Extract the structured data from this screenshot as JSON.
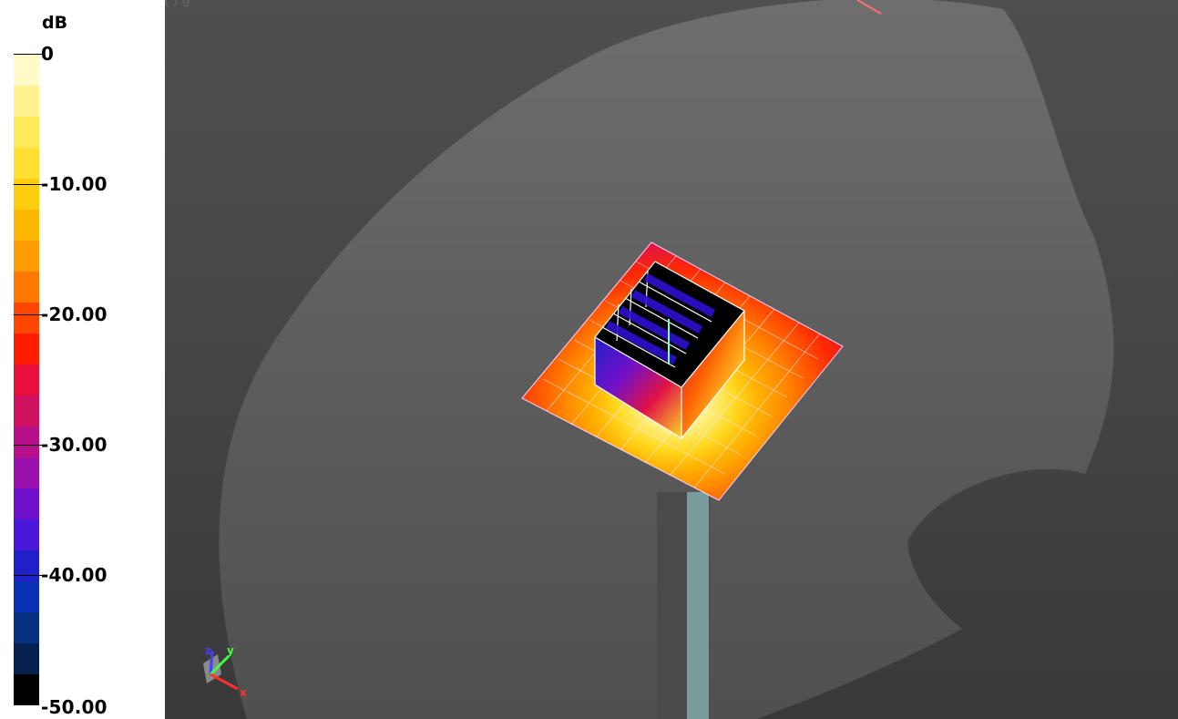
{
  "caption": "(          )                    g",
  "legend": {
    "unit": "dB",
    "labels": [
      "0",
      "-10.00",
      "-20.00",
      "-30.00",
      "-40.00",
      "-50.00"
    ],
    "colors": [
      "#fffac8",
      "#fff290",
      "#ffea5a",
      "#ffe030",
      "#ffce10",
      "#ffb800",
      "#ff9c00",
      "#ff7800",
      "#ff4600",
      "#ff1c00",
      "#e8103a",
      "#d01060",
      "#b8108a",
      "#9a10ac",
      "#7010c8",
      "#4a18d8",
      "#2020c8",
      "#0a30b4",
      "#083080",
      "#062050",
      "#000000"
    ]
  },
  "scene": {
    "palette": [
      "#fffbd8",
      "#ffef80",
      "#ffd820",
      "#ffb000",
      "#ff8a00",
      "#ff5c00",
      "#ff2a00",
      "#e01248"
    ],
    "axes": [
      "z",
      "y",
      "x"
    ],
    "axis_colors": {
      "z": "#4040ff",
      "y": "#40ff40",
      "x": "#ff3030"
    }
  }
}
